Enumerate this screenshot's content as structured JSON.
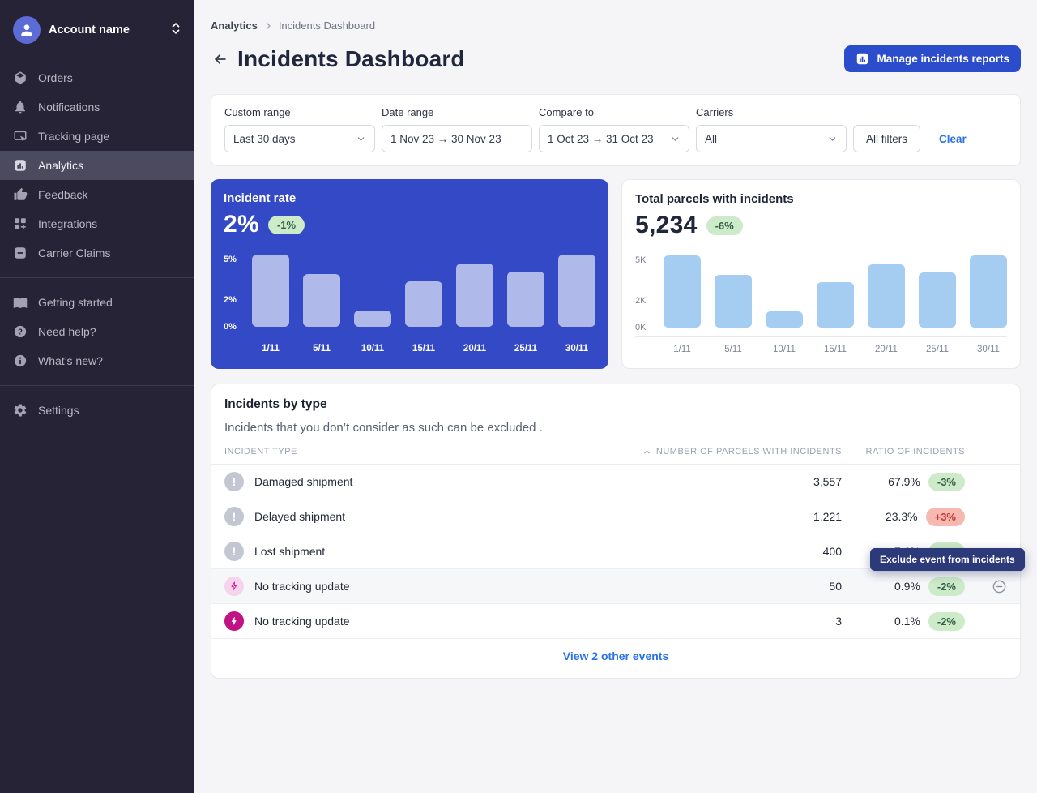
{
  "colors": {
    "sidebar_bg": "#272336",
    "accent_blue": "#2b4ccb",
    "card_blue": "#3449c5",
    "green_badge_bg": "#cdebc8",
    "red_badge_bg": "#f6b9b2",
    "magenta": "#c11384",
    "link_blue": "#2a72e3"
  },
  "sidebar": {
    "account_name": "Account name",
    "items": [
      {
        "label": "Orders"
      },
      {
        "label": "Notifications"
      },
      {
        "label": "Tracking page"
      },
      {
        "label": "Analytics"
      },
      {
        "label": "Feedback"
      },
      {
        "label": "Integrations"
      },
      {
        "label": "Carrier Claims"
      }
    ],
    "secondary_items": [
      {
        "label": "Getting started"
      },
      {
        "label": "Need help?"
      },
      {
        "label": "What’s new?"
      }
    ],
    "settings_label": "Settings"
  },
  "breadcrumb": {
    "parent": "Analytics",
    "current": "Incidents Dashboard"
  },
  "header": {
    "title": "Incidents Dashboard",
    "manage_button": "Manage incidents reports"
  },
  "filters": {
    "custom_range": {
      "label": "Custom range",
      "value": "Last 30 days"
    },
    "date_range": {
      "label": "Date range",
      "value": "1 Nov 23 → 30 Nov 23"
    },
    "compare_to": {
      "label": "Compare to",
      "value": "1 Oct 23 → 31 Oct 23"
    },
    "carriers": {
      "label": "Carriers",
      "value": "All"
    },
    "all_filters_label": "All filters",
    "clear_label": "Clear"
  },
  "chart_data": [
    {
      "type": "bar",
      "title": "Incident rate",
      "current_value": "2%",
      "delta": "-1%",
      "categories": [
        "1/11",
        "5/11",
        "10/11",
        "15/11",
        "20/11",
        "25/11",
        "30/11"
      ],
      "values": [
        5.4,
        3.9,
        1.2,
        3.4,
        4.7,
        4.1,
        5.4
      ],
      "ylabel": "incident rate %",
      "yticks": [
        "5%",
        "2%",
        "0%"
      ],
      "ytick_values": [
        5,
        2,
        0
      ],
      "ylim": [
        0,
        5.8
      ],
      "bar_color": "#afb9ea",
      "legend": "none",
      "grid": "off"
    },
    {
      "type": "bar",
      "title": "Total parcels with incidents",
      "current_value": "5,234",
      "delta": "-6%",
      "categories": [
        "1/11",
        "5/11",
        "10/11",
        "15/11",
        "20/11",
        "25/11",
        "30/11"
      ],
      "values": [
        5400,
        3900,
        1200,
        3400,
        4700,
        4100,
        5400
      ],
      "ylabel": "parcels",
      "yticks": [
        "5K",
        "2K",
        "0K"
      ],
      "ytick_values": [
        5000,
        2000,
        0
      ],
      "ylim": [
        0,
        5800
      ],
      "bar_color": "#a4cdf1",
      "legend": "none",
      "grid": "off"
    }
  ],
  "table": {
    "title": "Incidents by type",
    "subtitle": "Incidents that you don’t consider as such can be excluded .",
    "columns": [
      "INCIDENT TYPE",
      "NUMBER OF PARCELS WITH INCIDENTS",
      "RATIO OF INCIDENTS"
    ],
    "rows": [
      {
        "label": "Damaged shipment",
        "parcels": "3,557",
        "ratio": "67.9%",
        "delta": "-3%"
      },
      {
        "label": "Delayed shipment",
        "parcels": "1,221",
        "ratio": "23.3%",
        "delta": "+3%"
      },
      {
        "label": "Lost shipment",
        "parcels": "400",
        "ratio": "7.6%",
        "delta": "-2%"
      },
      {
        "label": "No tracking update",
        "parcels": "50",
        "ratio": "0.9%",
        "delta": "-2%"
      },
      {
        "label": "No tracking update",
        "parcels": "3",
        "ratio": "0.1%",
        "delta": "-2%"
      }
    ],
    "tooltip": "Exclude event from incidents",
    "footer_link": "View 2 other events"
  }
}
